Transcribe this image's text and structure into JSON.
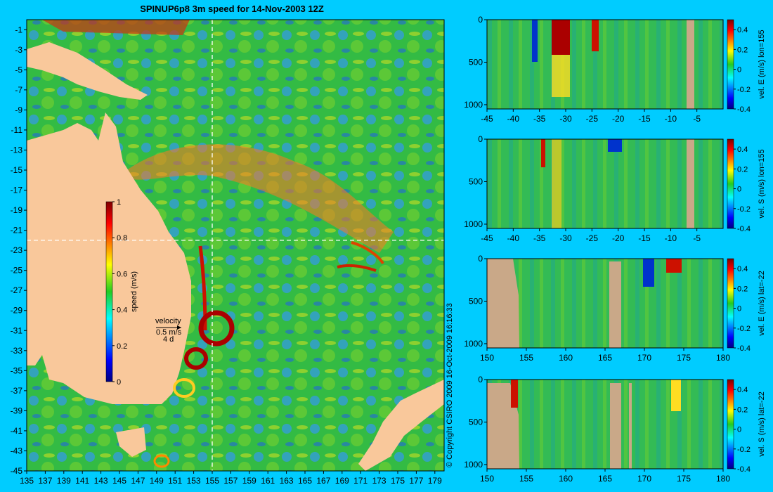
{
  "title": "SPINUP6p8 3m speed for 14-Nov-2003 12Z",
  "copyright": "© Copyright CSIRO 2009 16-Oct-2009 16:16:33",
  "colors": {
    "background": "#00ccff",
    "land": "#f9c89b",
    "bathymetry_mask": "#c9a888",
    "crosshair": "#ffffff"
  },
  "map": {
    "type": "heatmap",
    "xlim": [
      135,
      180
    ],
    "ylim": [
      -45,
      0
    ],
    "x_ticks": [
      135,
      137,
      139,
      141,
      143,
      145,
      147,
      149,
      151,
      153,
      155,
      157,
      159,
      161,
      163,
      165,
      167,
      169,
      171,
      173,
      175,
      177,
      179
    ],
    "y_ticks": [
      -1,
      -3,
      -5,
      -7,
      -9,
      -11,
      -13,
      -15,
      -17,
      -19,
      -21,
      -23,
      -25,
      -27,
      -29,
      -31,
      -33,
      -35,
      -37,
      -39,
      -41,
      -43,
      -45
    ],
    "crosshair": {
      "lon": 155,
      "lat": -22
    },
    "colorbar": {
      "label": "speed (m/s)",
      "range": [
        0,
        1
      ],
      "ticks": [
        0,
        0.2,
        0.4,
        0.6,
        0.8,
        1
      ]
    },
    "velocity_key": {
      "label": "velocity",
      "speed": "0.5 m/s",
      "time": "4 d"
    }
  },
  "chart_data": [
    {
      "type": "heatmap",
      "ylabel": "vel. E (m/s) lon=155",
      "x_ticks": [
        -45,
        -40,
        -35,
        -30,
        -25,
        -20,
        -15,
        -10,
        -5
      ],
      "xlim": [
        -45,
        0
      ],
      "y_ticks": [
        0,
        500,
        1000
      ],
      "ylim": [
        1050,
        0
      ],
      "colorbar": {
        "range": [
          -0.4,
          0.5
        ],
        "ticks": [
          0.4,
          0.2,
          0,
          -0.2,
          -0.4
        ]
      }
    },
    {
      "type": "heatmap",
      "ylabel": "vel. S (m/s) lon=155",
      "x_ticks": [
        -45,
        -40,
        -35,
        -30,
        -25,
        -20,
        -15,
        -10,
        -5
      ],
      "xlim": [
        -45,
        0
      ],
      "y_ticks": [
        0,
        500,
        1000
      ],
      "ylim": [
        1050,
        0
      ],
      "colorbar": {
        "range": [
          -0.4,
          0.5
        ],
        "ticks": [
          0.4,
          0.2,
          0,
          -0.2,
          -0.4
        ]
      }
    },
    {
      "type": "heatmap",
      "ylabel": "vel. E (m/s) lat=-22",
      "x_ticks": [
        150,
        155,
        160,
        165,
        170,
        175,
        180
      ],
      "xlim": [
        150,
        180
      ],
      "y_ticks": [
        0,
        500,
        1000
      ],
      "ylim": [
        1050,
        0
      ],
      "colorbar": {
        "range": [
          -0.4,
          0.5
        ],
        "ticks": [
          0.4,
          0.2,
          0,
          -0.2,
          -0.4
        ]
      }
    },
    {
      "type": "heatmap",
      "ylabel": "vel. S (m/s) lat=-22",
      "x_ticks": [
        150,
        155,
        160,
        165,
        170,
        175,
        180
      ],
      "xlim": [
        150,
        180
      ],
      "y_ticks": [
        0,
        500,
        1000
      ],
      "ylim": [
        1050,
        0
      ],
      "colorbar": {
        "range": [
          -0.4,
          0.5
        ],
        "ticks": [
          0.4,
          0.2,
          0,
          -0.2,
          -0.4
        ]
      }
    }
  ]
}
